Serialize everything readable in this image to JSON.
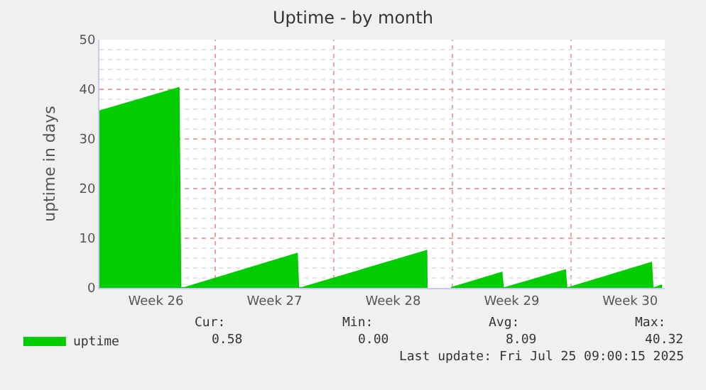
{
  "chart_data": {
    "type": "area",
    "title": "Uptime - by month",
    "ylabel": "uptime in days",
    "x": [
      "2025-06-22T04:00",
      "2025-06-26T20:30",
      "2025-06-26T23:00",
      "2025-06-27T04:00",
      "2025-07-03T20:00",
      "2025-07-03T22:00",
      "2025-07-04T02:00",
      "2025-07-11T11:30",
      "2025-07-11T12:00",
      "2025-07-12T00:00",
      "2025-07-12T22:00",
      "2025-07-15T22:00",
      "2025-07-16T00:00",
      "2025-07-16T02:00",
      "2025-07-19T16:00",
      "2025-07-19T18:00",
      "2025-07-19T20:00",
      "2025-07-24T18:00",
      "2025-07-24T20:00",
      "2025-07-24T22:00",
      "2025-07-25T09:00"
    ],
    "series": [
      {
        "name": "uptime",
        "color": "#00cc00",
        "values": [
          35.6,
          40.3,
          0,
          0,
          6.9,
          0,
          0,
          7.5,
          0,
          null,
          0,
          3.1,
          0,
          0,
          3.6,
          0,
          0,
          5.1,
          0,
          0,
          0.58
        ]
      }
    ],
    "xlim": [
      "2025-06-22T04:00",
      "2025-07-25T13:00"
    ],
    "xticks": [
      {
        "value": "2025-06-25T12:00",
        "label": "Week 26"
      },
      {
        "value": "2025-06-29",
        "label": null
      },
      {
        "value": "2025-07-02T12:00",
        "label": "Week 27"
      },
      {
        "value": "2025-07-06",
        "label": null
      },
      {
        "value": "2025-07-09T12:00",
        "label": "Week 28"
      },
      {
        "value": "2025-07-13",
        "label": null
      },
      {
        "value": "2025-07-16T12:00",
        "label": "Week 29"
      },
      {
        "value": "2025-07-20",
        "label": null
      },
      {
        "value": "2025-07-23T12:00",
        "label": "Week 30"
      }
    ],
    "ylim": [
      0,
      50
    ],
    "yticks": [
      0,
      10,
      20,
      30,
      40,
      50
    ],
    "grid": true,
    "legend": "bottom left",
    "annotations": [
      "Cur:",
      "Min:",
      "Avg:",
      "Max:",
      "0.58",
      "0.00",
      "8.09",
      "40.32",
      "Last update: Fri Jul 25 09:00:15 2025"
    ]
  }
}
